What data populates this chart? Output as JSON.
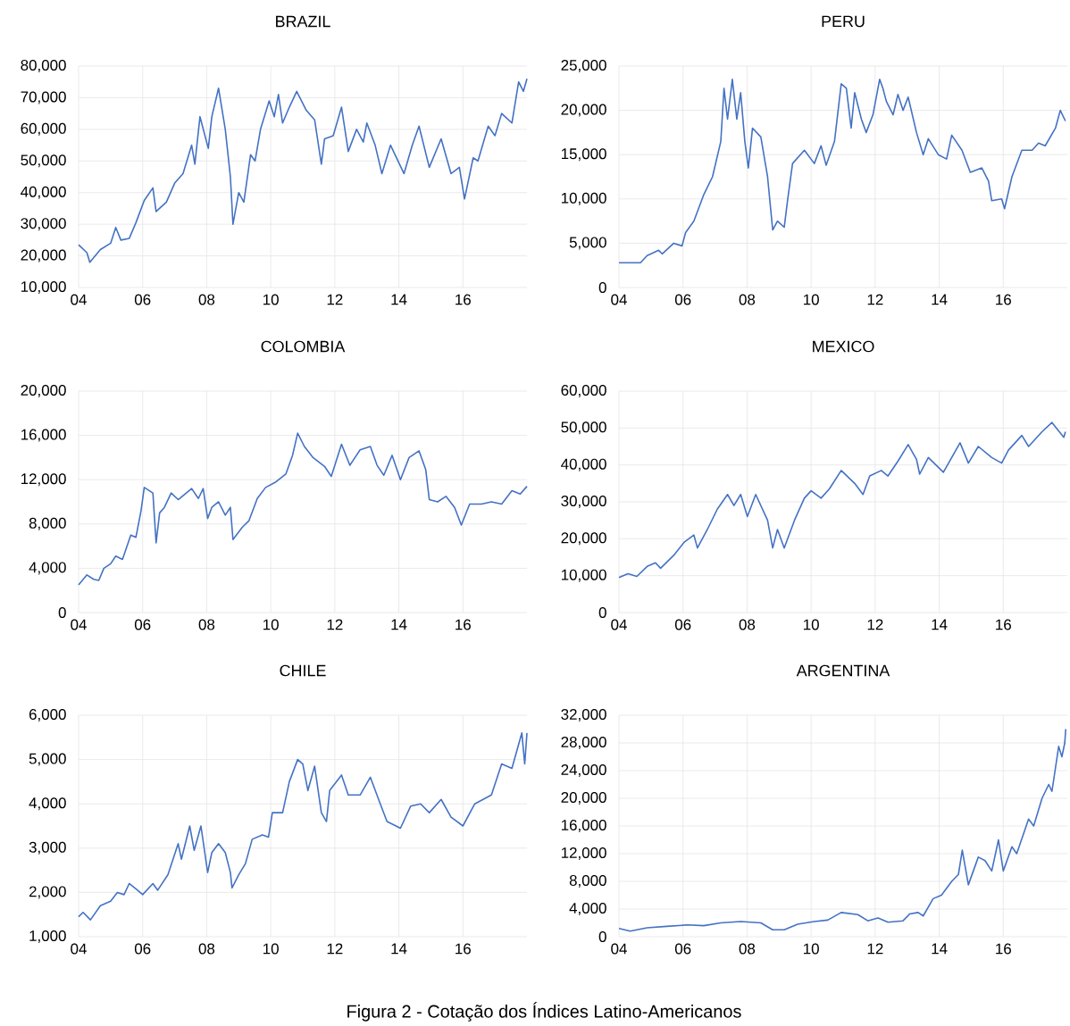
{
  "chart_data": [
    {
      "type": "line",
      "title": "BRAZIL",
      "color": "#4472c4",
      "grid": true,
      "xlim": [
        2004,
        2018
      ],
      "xticks": [
        {
          "value": 2004,
          "label": "04"
        },
        {
          "value": 2006,
          "label": "06"
        },
        {
          "value": 2008,
          "label": "08"
        },
        {
          "value": 2010,
          "label": "10"
        },
        {
          "value": 2012,
          "label": "12"
        },
        {
          "value": 2014,
          "label": "14"
        },
        {
          "value": 2016,
          "label": "16"
        }
      ],
      "ylim": [
        10000,
        80000
      ],
      "yticks": [
        {
          "value": 10000,
          "label": "10,000"
        },
        {
          "value": 20000,
          "label": "20,000"
        },
        {
          "value": 30000,
          "label": "30,000"
        },
        {
          "value": 40000,
          "label": "40,000"
        },
        {
          "value": 50000,
          "label": "50,000"
        },
        {
          "value": 60000,
          "label": "60,000"
        },
        {
          "value": 70000,
          "label": "70,000"
        },
        {
          "value": 80000,
          "label": "80,000"
        }
      ],
      "x": [
        2004.0,
        2004.26,
        2004.35,
        2004.68,
        2005.0,
        2005.16,
        2005.32,
        2005.58,
        2005.79,
        2006.05,
        2006.32,
        2006.42,
        2006.74,
        2007.0,
        2007.26,
        2007.53,
        2007.63,
        2007.79,
        2008.05,
        2008.16,
        2008.37,
        2008.58,
        2008.74,
        2008.82,
        2009.0,
        2009.16,
        2009.37,
        2009.51,
        2009.68,
        2009.95,
        2010.11,
        2010.24,
        2010.37,
        2010.58,
        2010.81,
        2011.11,
        2011.37,
        2011.58,
        2011.68,
        2011.95,
        2012.21,
        2012.42,
        2012.68,
        2012.89,
        2013.0,
        2013.26,
        2013.47,
        2013.74,
        2014.16,
        2014.42,
        2014.63,
        2014.95,
        2015.32,
        2015.63,
        2015.89,
        2016.05,
        2016.32,
        2016.47,
        2016.79,
        2017.0,
        2017.21,
        2017.53,
        2017.74,
        2017.89,
        2018.0
      ],
      "values": [
        23500,
        21000,
        18000,
        22000,
        24000,
        29000,
        25000,
        25500,
        30500,
        37500,
        41500,
        34000,
        37000,
        43000,
        46000,
        55000,
        49000,
        64000,
        54000,
        64000,
        73000,
        60000,
        45000,
        30000,
        40000,
        37000,
        52000,
        50000,
        60000,
        69000,
        64000,
        71000,
        62000,
        67000,
        72000,
        66000,
        63000,
        49000,
        57000,
        58000,
        67000,
        53000,
        60000,
        56000,
        62000,
        55000,
        46000,
        55000,
        46000,
        55000,
        61000,
        48000,
        57000,
        46000,
        48000,
        38000,
        51000,
        50000,
        61000,
        58000,
        65000,
        62000,
        75000,
        72000,
        76000
      ]
    },
    {
      "type": "line",
      "title": "PERU",
      "color": "#4472c4",
      "grid": true,
      "xlim": [
        2004,
        2018
      ],
      "xticks": [
        {
          "value": 2004,
          "label": "04"
        },
        {
          "value": 2006,
          "label": "06"
        },
        {
          "value": 2008,
          "label": "08"
        },
        {
          "value": 2010,
          "label": "10"
        },
        {
          "value": 2012,
          "label": "12"
        },
        {
          "value": 2014,
          "label": "14"
        },
        {
          "value": 2016,
          "label": "16"
        }
      ],
      "ylim": [
        0,
        25000
      ],
      "yticks": [
        {
          "value": 0,
          "label": "0"
        },
        {
          "value": 5000,
          "label": "5,000"
        },
        {
          "value": 10000,
          "label": "10,000"
        },
        {
          "value": 15000,
          "label": "15,000"
        },
        {
          "value": 20000,
          "label": "20,000"
        },
        {
          "value": 25000,
          "label": "25,000"
        }
      ],
      "x": [
        2004.0,
        2004.67,
        2004.88,
        2005.24,
        2005.35,
        2005.71,
        2005.97,
        2006.08,
        2006.34,
        2006.65,
        2006.92,
        2007.18,
        2007.28,
        2007.39,
        2007.54,
        2007.68,
        2007.8,
        2007.93,
        2008.04,
        2008.17,
        2008.43,
        2008.64,
        2008.8,
        2008.95,
        2009.16,
        2009.27,
        2009.42,
        2009.79,
        2010.1,
        2010.31,
        2010.47,
        2010.73,
        2010.94,
        2011.1,
        2011.25,
        2011.36,
        2011.57,
        2011.72,
        2011.93,
        2012.14,
        2012.24,
        2012.35,
        2012.56,
        2012.71,
        2012.87,
        2013.03,
        2013.29,
        2013.5,
        2013.66,
        2013.97,
        2014.23,
        2014.39,
        2014.71,
        2014.97,
        2015.33,
        2015.54,
        2015.64,
        2015.95,
        2016.04,
        2016.27,
        2016.58,
        2016.9,
        2017.1,
        2017.31,
        2017.63,
        2017.78,
        2017.94
      ],
      "values": [
        2800,
        2800,
        3600,
        4200,
        3800,
        5000,
        4700,
        6200,
        7500,
        10500,
        12500,
        16500,
        22500,
        19000,
        23500,
        19000,
        22000,
        16500,
        13500,
        18000,
        17000,
        12500,
        6500,
        7500,
        6800,
        10000,
        14000,
        15500,
        14000,
        16000,
        13800,
        16500,
        23000,
        22500,
        18000,
        22000,
        19000,
        17500,
        19500,
        23500,
        22500,
        21000,
        19500,
        21800,
        20000,
        21500,
        17500,
        15000,
        16800,
        15000,
        14500,
        17200,
        15500,
        13000,
        13500,
        12000,
        9800,
        10000,
        8900,
        12500,
        15500,
        15500,
        16300,
        16000,
        18000,
        20000,
        18800
      ]
    },
    {
      "type": "line",
      "title": "COLOMBIA",
      "color": "#4472c4",
      "grid": true,
      "xlim": [
        2004,
        2018
      ],
      "xticks": [
        {
          "value": 2004,
          "label": "04"
        },
        {
          "value": 2006,
          "label": "06"
        },
        {
          "value": 2008,
          "label": "08"
        },
        {
          "value": 2010,
          "label": "10"
        },
        {
          "value": 2012,
          "label": "12"
        },
        {
          "value": 2014,
          "label": "14"
        },
        {
          "value": 2016,
          "label": "16"
        }
      ],
      "ylim": [
        0,
        20000
      ],
      "yticks": [
        {
          "value": 0,
          "label": "0"
        },
        {
          "value": 4000,
          "label": "4,000"
        },
        {
          "value": 8000,
          "label": "8,000"
        },
        {
          "value": 12000,
          "label": "12,000"
        },
        {
          "value": 16000,
          "label": "16,000"
        },
        {
          "value": 20000,
          "label": "20,000"
        }
      ],
      "x": [
        2004.0,
        2004.26,
        2004.47,
        2004.63,
        2004.79,
        2005.0,
        2005.16,
        2005.37,
        2005.63,
        2005.79,
        2005.95,
        2006.05,
        2006.32,
        2006.42,
        2006.53,
        2006.68,
        2006.89,
        2007.11,
        2007.53,
        2007.74,
        2007.89,
        2008.03,
        2008.16,
        2008.37,
        2008.58,
        2008.74,
        2008.82,
        2009.11,
        2009.32,
        2009.58,
        2009.84,
        2010.16,
        2010.47,
        2010.68,
        2010.84,
        2011.05,
        2011.32,
        2011.68,
        2011.89,
        2012.21,
        2012.47,
        2012.79,
        2013.11,
        2013.32,
        2013.53,
        2013.79,
        2014.05,
        2014.32,
        2014.63,
        2014.84,
        2014.95,
        2015.21,
        2015.47,
        2015.74,
        2015.95,
        2016.21,
        2016.58,
        2016.89,
        2017.21,
        2017.53,
        2017.79,
        2018.0
      ],
      "values": [
        2500,
        3400,
        3000,
        2900,
        4000,
        4400,
        5100,
        4800,
        7000,
        6800,
        9200,
        11300,
        10800,
        6300,
        9000,
        9500,
        10800,
        10200,
        11200,
        10300,
        11200,
        8500,
        9500,
        10000,
        8800,
        9500,
        6600,
        7700,
        8300,
        10300,
        11300,
        11800,
        12500,
        14200,
        16200,
        15000,
        14000,
        13200,
        12300,
        15200,
        13300,
        14700,
        15000,
        13300,
        12400,
        14200,
        12000,
        14000,
        14600,
        12900,
        10200,
        10000,
        10500,
        9500,
        7900,
        9800,
        9800,
        10000,
        9800,
        11000,
        10700,
        11400
      ]
    },
    {
      "type": "line",
      "title": "MEXICO",
      "color": "#4472c4",
      "grid": true,
      "xlim": [
        2004,
        2018
      ],
      "xticks": [
        {
          "value": 2004,
          "label": "04"
        },
        {
          "value": 2006,
          "label": "06"
        },
        {
          "value": 2008,
          "label": "08"
        },
        {
          "value": 2010,
          "label": "10"
        },
        {
          "value": 2012,
          "label": "12"
        },
        {
          "value": 2014,
          "label": "14"
        },
        {
          "value": 2016,
          "label": "16"
        }
      ],
      "ylim": [
        0,
        60000
      ],
      "yticks": [
        {
          "value": 0,
          "label": "0"
        },
        {
          "value": 10000,
          "label": "10,000"
        },
        {
          "value": 20000,
          "label": "20,000"
        },
        {
          "value": 30000,
          "label": "30,000"
        },
        {
          "value": 40000,
          "label": "40,000"
        },
        {
          "value": 50000,
          "label": "50,000"
        },
        {
          "value": 60000,
          "label": "60,000"
        }
      ],
      "x": [
        2004.0,
        2004.28,
        2004.56,
        2004.88,
        2005.14,
        2005.3,
        2005.71,
        2006.03,
        2006.34,
        2006.45,
        2006.76,
        2007.07,
        2007.39,
        2007.59,
        2007.8,
        2008.01,
        2008.27,
        2008.64,
        2008.8,
        2008.95,
        2009.16,
        2009.48,
        2009.79,
        2010.0,
        2010.31,
        2010.57,
        2010.94,
        2011.36,
        2011.62,
        2011.83,
        2012.19,
        2012.4,
        2012.71,
        2013.03,
        2013.29,
        2013.39,
        2013.66,
        2014.13,
        2014.65,
        2014.91,
        2015.22,
        2015.64,
        2015.95,
        2016.16,
        2016.58,
        2016.79,
        2017.21,
        2017.52,
        2017.89,
        2017.94
      ],
      "values": [
        9500,
        10500,
        9800,
        12500,
        13500,
        12000,
        15500,
        19000,
        21000,
        17500,
        22500,
        28000,
        32000,
        29000,
        32000,
        26000,
        32000,
        25000,
        17500,
        22500,
        17500,
        25000,
        31000,
        33000,
        31000,
        33500,
        38500,
        35000,
        32000,
        37000,
        38500,
        37000,
        41000,
        45500,
        41500,
        37500,
        42000,
        38000,
        46000,
        40500,
        45000,
        42000,
        40500,
        44000,
        48000,
        45000,
        49000,
        51500,
        47500,
        49000
      ]
    },
    {
      "type": "line",
      "title": "CHILE",
      "color": "#4472c4",
      "grid": true,
      "xlim": [
        2004,
        2018
      ],
      "xticks": [
        {
          "value": 2004,
          "label": "04"
        },
        {
          "value": 2006,
          "label": "06"
        },
        {
          "value": 2008,
          "label": "08"
        },
        {
          "value": 2010,
          "label": "10"
        },
        {
          "value": 2012,
          "label": "12"
        },
        {
          "value": 2014,
          "label": "14"
        },
        {
          "value": 2016,
          "label": "16"
        }
      ],
      "ylim": [
        1000,
        6000
      ],
      "yticks": [
        {
          "value": 1000,
          "label": "1,000"
        },
        {
          "value": 2000,
          "label": "2,000"
        },
        {
          "value": 3000,
          "label": "3,000"
        },
        {
          "value": 4000,
          "label": "4,000"
        },
        {
          "value": 5000,
          "label": "5,000"
        },
        {
          "value": 6000,
          "label": "6,000"
        }
      ],
      "x": [
        2004.0,
        2004.14,
        2004.37,
        2004.68,
        2005.0,
        2005.21,
        2005.42,
        2005.58,
        2005.84,
        2006.0,
        2006.32,
        2006.47,
        2006.79,
        2007.11,
        2007.21,
        2007.47,
        2007.61,
        2007.82,
        2008.03,
        2008.16,
        2008.37,
        2008.58,
        2008.74,
        2008.79,
        2009.0,
        2009.21,
        2009.42,
        2009.74,
        2009.93,
        2010.05,
        2010.37,
        2010.58,
        2010.84,
        2011.0,
        2011.16,
        2011.37,
        2011.58,
        2011.74,
        2011.84,
        2012.21,
        2012.42,
        2012.79,
        2013.11,
        2013.42,
        2013.63,
        2014.05,
        2014.37,
        2014.68,
        2014.95,
        2015.32,
        2015.63,
        2016.0,
        2016.37,
        2016.89,
        2017.21,
        2017.53,
        2017.84,
        2017.93,
        2018.0
      ],
      "values": [
        1450,
        1550,
        1380,
        1700,
        1800,
        2000,
        1950,
        2200,
        2050,
        1950,
        2200,
        2050,
        2400,
        3100,
        2750,
        3500,
        2950,
        3500,
        2450,
        2900,
        3100,
        2900,
        2450,
        2100,
        2400,
        2650,
        3200,
        3300,
        3250,
        3800,
        3800,
        4500,
        5000,
        4900,
        4300,
        4850,
        3800,
        3600,
        4300,
        4650,
        4200,
        4200,
        4600,
        4000,
        3600,
        3450,
        3950,
        4000,
        3800,
        4100,
        3700,
        3500,
        4000,
        4200,
        4900,
        4800,
        5600,
        4900,
        5600
      ]
    },
    {
      "type": "line",
      "title": "ARGENTINA",
      "color": "#4472c4",
      "grid": true,
      "xlim": [
        2004,
        2018
      ],
      "xticks": [
        {
          "value": 2004,
          "label": "04"
        },
        {
          "value": 2006,
          "label": "06"
        },
        {
          "value": 2008,
          "label": "08"
        },
        {
          "value": 2010,
          "label": "10"
        },
        {
          "value": 2012,
          "label": "12"
        },
        {
          "value": 2014,
          "label": "14"
        },
        {
          "value": 2016,
          "label": "16"
        }
      ],
      "ylim": [
        0,
        32000
      ],
      "yticks": [
        {
          "value": 0,
          "label": "0"
        },
        {
          "value": 4000,
          "label": "4,000"
        },
        {
          "value": 8000,
          "label": "8,000"
        },
        {
          "value": 12000,
          "label": "12,000"
        },
        {
          "value": 16000,
          "label": "16,000"
        },
        {
          "value": 20000,
          "label": "20,000"
        },
        {
          "value": 24000,
          "label": "24,000"
        },
        {
          "value": 28000,
          "label": "28,000"
        },
        {
          "value": 32000,
          "label": "32,000"
        }
      ],
      "x": [
        2004.0,
        2004.35,
        2004.88,
        2005.5,
        2006.13,
        2006.65,
        2007.18,
        2007.8,
        2008.43,
        2008.8,
        2009.16,
        2009.58,
        2010.1,
        2010.52,
        2010.94,
        2011.46,
        2011.77,
        2012.09,
        2012.4,
        2012.87,
        2013.08,
        2013.34,
        2013.5,
        2013.81,
        2014.07,
        2014.39,
        2014.6,
        2014.72,
        2014.91,
        2015.22,
        2015.43,
        2015.64,
        2015.85,
        2016.0,
        2016.27,
        2016.42,
        2016.79,
        2016.95,
        2017.21,
        2017.42,
        2017.52,
        2017.73,
        2017.83,
        2017.92,
        2017.95
      ],
      "values": [
        1200,
        800,
        1300,
        1500,
        1700,
        1600,
        2000,
        2200,
        2000,
        1000,
        1000,
        1800,
        2200,
        2400,
        3500,
        3200,
        2300,
        2700,
        2100,
        2300,
        3300,
        3500,
        3000,
        5500,
        6000,
        8000,
        9000,
        12500,
        7500,
        11500,
        11000,
        9500,
        14000,
        9500,
        13000,
        12000,
        17000,
        16000,
        20000,
        22000,
        21000,
        27500,
        26000,
        28000,
        30000
      ],
      "annotations": [
        "Figura 2 - Cotação dos Índices Latino-Americanos"
      ]
    }
  ]
}
